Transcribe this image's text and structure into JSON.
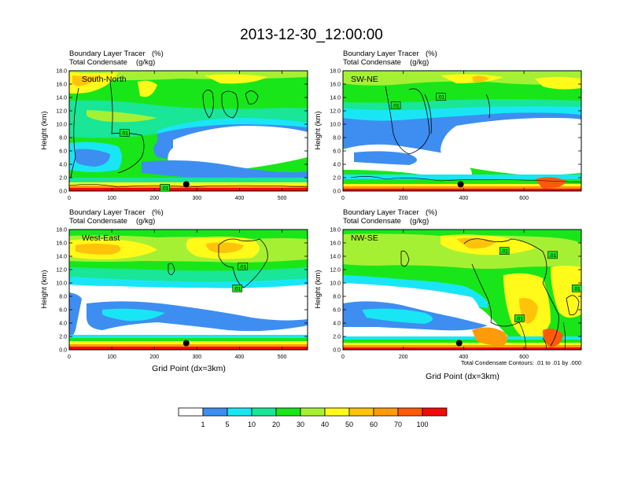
{
  "page_title": "2013-12-30_12:00:00",
  "chart_data": [
    {
      "type": "heatmap",
      "panel": "South-North",
      "title_line1": "Boundary Layer Tracer",
      "title_unit1": "(%)",
      "title_line2": "Total Condensate",
      "title_unit2": "(g/kg)",
      "ylabel": "Height (km)",
      "xlabel": "",
      "xlim": [
        0,
        560
      ],
      "ylim": [
        0,
        18
      ],
      "xticks": [
        "0",
        "100",
        "200",
        "300",
        "400",
        "500"
      ],
      "xtick_values": [
        0,
        100,
        200,
        300,
        400,
        500
      ],
      "yticks": [
        "0.0",
        "2.0",
        "4.0",
        "6.0",
        "8.0",
        "10.0",
        "12.0",
        "14.0",
        "16.0",
        "18.0"
      ],
      "contour_labels": [
        {
          "text": ".01",
          "x": 130,
          "y": 8.7
        },
        {
          "text": ".01",
          "x": 225,
          "y": 0.5
        }
      ],
      "marker_point": {
        "x": 275,
        "y": 1.0
      }
    },
    {
      "type": "heatmap",
      "panel": "SW-NE",
      "title_line1": "Boundary Layer Tracer",
      "title_unit1": "(%)",
      "title_line2": "Total Condensate",
      "title_unit2": "(g/kg)",
      "ylabel": "Height (km)",
      "xlabel": "",
      "xlim": [
        0,
        790
      ],
      "ylim": [
        0,
        18
      ],
      "xticks": [
        "0",
        "200",
        "400",
        "600"
      ],
      "xtick_values": [
        0,
        200,
        400,
        600
      ],
      "yticks": [
        "0.0",
        "2.0",
        "4.0",
        "6.0",
        "8.0",
        "10.0",
        "12.0",
        "14.0",
        "16.0",
        "18.0"
      ],
      "contour_labels": [
        {
          "text": ".01",
          "x": 175,
          "y": 12.8
        },
        {
          "text": ".01",
          "x": 325,
          "y": 14.1
        }
      ],
      "marker_point": {
        "x": 390,
        "y": 1.0
      }
    },
    {
      "type": "heatmap",
      "panel": "West-East",
      "title_line1": "Boundary Layer Tracer",
      "title_unit1": "(%)",
      "title_line2": "Total Condensate",
      "title_unit2": "(g/kg)",
      "ylabel": "Height (km)",
      "xlabel": "Grid Point (dx=3km)",
      "xlim": [
        0,
        560
      ],
      "ylim": [
        0,
        18
      ],
      "xticks": [
        "0",
        "100",
        "200",
        "300",
        "400",
        "500"
      ],
      "xtick_values": [
        0,
        100,
        200,
        300,
        400,
        500
      ],
      "yticks": [
        "0.0",
        "2.0",
        "4.0",
        "6.0",
        "8.0",
        "10.0",
        "12.0",
        "14.0",
        "16.0",
        "18.0"
      ],
      "contour_labels": [
        {
          "text": ".01",
          "x": 408,
          "y": 12.5
        },
        {
          "text": ".01",
          "x": 395,
          "y": 9.2
        }
      ],
      "marker_point": {
        "x": 275,
        "y": 1.0
      }
    },
    {
      "type": "heatmap",
      "panel": "NW-SE",
      "title_line1": "Boundary Layer Tracer",
      "title_unit1": "(%)",
      "title_line2": "Total Condensate",
      "title_unit2": "(g/kg)",
      "ylabel": "Height (km)",
      "xlabel": "Grid Point (dx=3km)",
      "xlim": [
        0,
        790
      ],
      "ylim": [
        0,
        18
      ],
      "xticks": [
        "0",
        "200",
        "400",
        "600"
      ],
      "xtick_values": [
        0,
        200,
        400,
        600
      ],
      "yticks": [
        "0.0",
        "2.0",
        "4.0",
        "6.0",
        "8.0",
        "10.0",
        "12.0",
        "14.0",
        "16.0",
        "18.0"
      ],
      "contour_labels": [
        {
          "text": ".01",
          "x": 535,
          "y": 14.8
        },
        {
          "text": ".01",
          "x": 695,
          "y": 14.2
        },
        {
          "text": ".01",
          "x": 775,
          "y": 9.2
        },
        {
          "text": ".01",
          "x": 585,
          "y": 4.7
        }
      ],
      "marker_point": {
        "x": 385,
        "y": 1.0
      },
      "footnote": "Total Condensate Contours: .01 to .01 by .000"
    }
  ],
  "legend": {
    "labels": [
      "1",
      "5",
      "10",
      "20",
      "30",
      "40",
      "50",
      "60",
      "70",
      "100"
    ],
    "colors": [
      "#ffffff",
      "#3d8ef0",
      "#19e6f5",
      "#19e696",
      "#19e619",
      "#a6f034",
      "#fffa19",
      "#ffc30a",
      "#ff9a0a",
      "#ff5a0a",
      "#f20a0a"
    ]
  },
  "colors": {
    "white": "#ffffff",
    "blue": "#3d8ef0",
    "cyan": "#19e6f5",
    "teal": "#19e696",
    "green": "#19e619",
    "lime": "#a6f034",
    "yellow": "#fffa19",
    "gold": "#ffc30a",
    "orange": "#ff9a0a",
    "redorange": "#ff5a0a",
    "red": "#f20a0a",
    "contour": "#000000"
  }
}
